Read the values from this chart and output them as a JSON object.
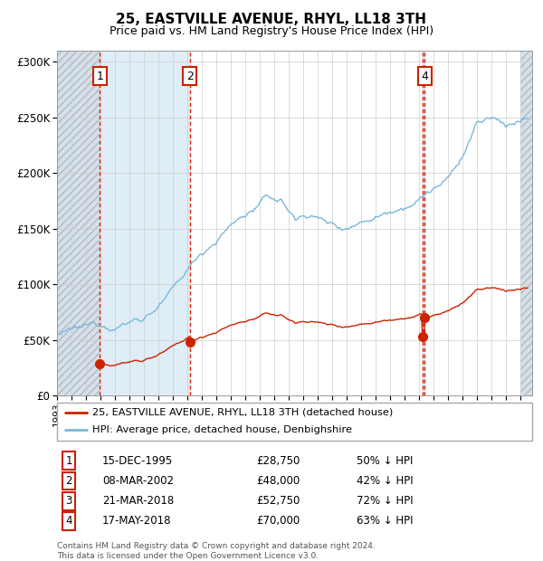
{
  "title": "25, EASTVILLE AVENUE, RHYL, LL18 3TH",
  "subtitle": "Price paid vs. HM Land Registry's House Price Index (HPI)",
  "transactions": [
    {
      "num": 1,
      "date_label": "15-DEC-1995",
      "date_year": 1995.96,
      "price": 28750,
      "pct": "50% ↓ HPI"
    },
    {
      "num": 2,
      "date_label": "08-MAR-2002",
      "date_year": 2002.18,
      "price": 48000,
      "pct": "42% ↓ HPI"
    },
    {
      "num": 3,
      "date_label": "21-MAR-2018",
      "date_year": 2018.22,
      "price": 52750,
      "pct": "72% ↓ HPI"
    },
    {
      "num": 4,
      "date_label": "17-MAY-2018",
      "date_year": 2018.38,
      "price": 70000,
      "pct": "63% ↓ HPI"
    }
  ],
  "hpi_color": "#7ab8d9",
  "price_color": "#cc2200",
  "marker_color": "#cc2200",
  "shading_color": "#daeaf5",
  "hatch_color": "#b8c8d5",
  "vline_color": "#dd2200",
  "grid_color": "#cccccc",
  "background_color": "#ffffff",
  "ylim": [
    0,
    310000
  ],
  "xlim": [
    1993.0,
    2025.8
  ],
  "ylabel_ticks": [
    0,
    50000,
    100000,
    150000,
    200000,
    250000,
    300000
  ],
  "ylabel_labels": [
    "£0",
    "£50K",
    "£100K",
    "£150K",
    "£200K",
    "£250K",
    "£300K"
  ],
  "footer": "Contains HM Land Registry data © Crown copyright and database right 2024.\nThis data is licensed under the Open Government Licence v3.0.",
  "legend_line1": "25, EASTVILLE AVENUE, RHYL, LL18 3TH (detached house)",
  "legend_line2": "HPI: Average price, detached house, Denbighshire"
}
